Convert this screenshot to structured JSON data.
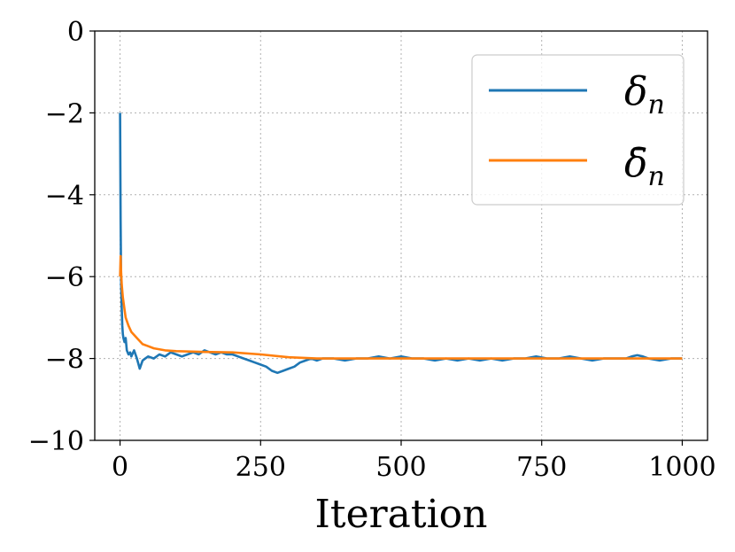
{
  "chart_data": {
    "type": "line",
    "title": "",
    "xlabel": "Iteration",
    "ylabel": "",
    "xlim": [
      -45,
      1045
    ],
    "ylim": [
      -10,
      0
    ],
    "x_ticks": [
      0,
      250,
      500,
      750,
      1000
    ],
    "y_ticks": [
      0,
      -2,
      -4,
      -6,
      -8,
      -10
    ],
    "x_tick_labels": [
      "0",
      "250",
      "500",
      "750",
      "1000"
    ],
    "y_tick_labels": [
      "0",
      "−2",
      "−4",
      "−6",
      "−8",
      "−10"
    ],
    "grid": true,
    "legend_position": "top-right",
    "series": [
      {
        "name": "δ",
        "name_subscript": "n",
        "color": "#1f77b4",
        "x": [
          0,
          1,
          2,
          3,
          4,
          5,
          6,
          8,
          10,
          12,
          15,
          18,
          20,
          25,
          30,
          35,
          40,
          45,
          50,
          60,
          70,
          80,
          90,
          100,
          110,
          120,
          130,
          140,
          150,
          160,
          170,
          180,
          190,
          200,
          210,
          220,
          230,
          240,
          250,
          260,
          270,
          280,
          290,
          300,
          310,
          320,
          330,
          340,
          350,
          360,
          380,
          400,
          420,
          440,
          460,
          480,
          500,
          520,
          540,
          560,
          580,
          600,
          620,
          640,
          660,
          680,
          700,
          720,
          740,
          760,
          780,
          800,
          820,
          840,
          860,
          880,
          900,
          910,
          920,
          930,
          940,
          960,
          980,
          1000
        ],
        "y": [
          -2.0,
          -4.6,
          -6.2,
          -6.8,
          -7.2,
          -7.4,
          -7.5,
          -7.6,
          -7.5,
          -7.8,
          -7.9,
          -7.85,
          -7.95,
          -7.8,
          -8.0,
          -8.25,
          -8.05,
          -8.0,
          -7.95,
          -8.0,
          -7.9,
          -7.95,
          -7.85,
          -7.9,
          -7.95,
          -7.9,
          -7.85,
          -7.9,
          -7.8,
          -7.85,
          -7.9,
          -7.85,
          -7.9,
          -7.9,
          -7.95,
          -8.0,
          -8.05,
          -8.1,
          -8.15,
          -8.2,
          -8.3,
          -8.35,
          -8.3,
          -8.25,
          -8.2,
          -8.1,
          -8.05,
          -8.0,
          -8.05,
          -8.0,
          -8.0,
          -8.05,
          -8.0,
          -8.0,
          -7.95,
          -8.0,
          -7.95,
          -8.0,
          -8.0,
          -8.05,
          -8.0,
          -8.05,
          -8.0,
          -8.05,
          -8.0,
          -8.05,
          -8.0,
          -8.0,
          -7.95,
          -8.0,
          -8.0,
          -7.95,
          -8.0,
          -8.05,
          -8.0,
          -8.0,
          -8.0,
          -7.95,
          -7.92,
          -7.95,
          -8.0,
          -8.05,
          -8.0,
          -8.0
        ]
      },
      {
        "name": "δ̄",
        "name_subscript": "n",
        "color": "#ff7f0e",
        "x": [
          0,
          1,
          2,
          3,
          5,
          8,
          10,
          15,
          20,
          30,
          40,
          50,
          60,
          80,
          100,
          150,
          200,
          250,
          300,
          350,
          400,
          450,
          500,
          600,
          700,
          800,
          900,
          1000
        ],
        "y": [
          -6.0,
          -5.5,
          -5.9,
          -6.2,
          -6.5,
          -6.8,
          -7.0,
          -7.2,
          -7.35,
          -7.5,
          -7.65,
          -7.7,
          -7.75,
          -7.8,
          -7.82,
          -7.84,
          -7.85,
          -7.9,
          -7.97,
          -8.0,
          -8.0,
          -8.0,
          -8.0,
          -8.0,
          -8.0,
          -8.0,
          -8.0,
          -8.0
        ]
      }
    ]
  }
}
